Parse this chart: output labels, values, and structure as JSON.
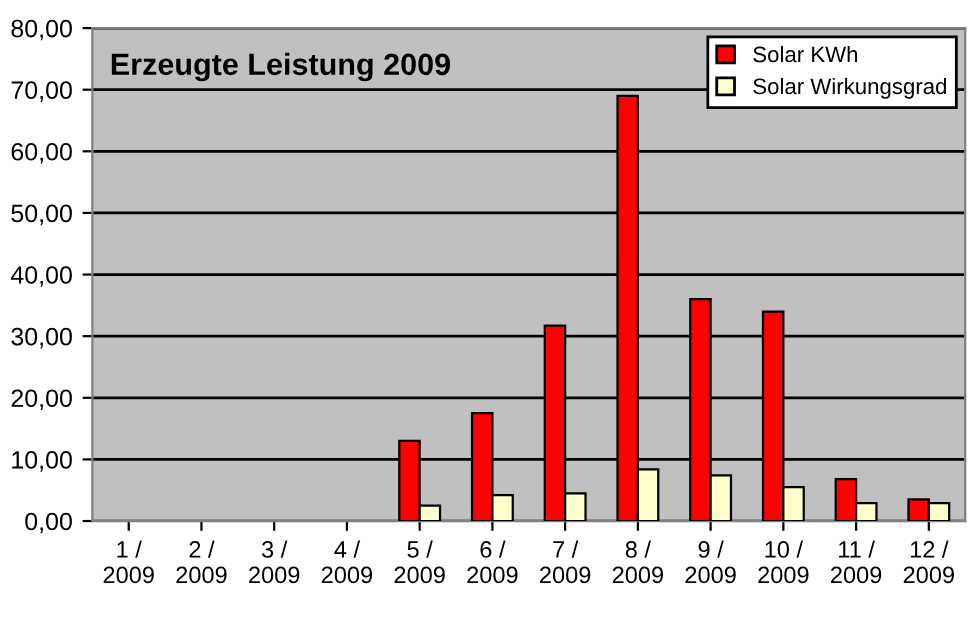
{
  "chart_data": {
    "type": "bar",
    "title": "Erzeugte Leistung 2009",
    "categories": [
      "1 /\n2009",
      "2 /\n2009",
      "3 /\n2009",
      "4 /\n2009",
      "5 /\n2009",
      "6 /\n2009",
      "7 /\n2009",
      "8 /\n2009",
      "9 /\n2009",
      "10 /\n2009",
      "11 /\n2009",
      "12 /\n2009"
    ],
    "series": [
      {
        "name": "Solar KWh",
        "color": "#ff0000",
        "values": [
          null,
          null,
          null,
          null,
          13.0,
          17.5,
          31.7,
          69.0,
          36.0,
          34.0,
          6.8,
          3.5
        ]
      },
      {
        "name": "Solar Wirkungsgrad",
        "color": "#ffffcc",
        "values": [
          null,
          null,
          null,
          null,
          2.5,
          4.2,
          4.5,
          8.4,
          7.4,
          5.5,
          2.9,
          2.9
        ]
      }
    ],
    "ylim": [
      0,
      80
    ],
    "yticks": [
      {
        "value": 0,
        "label": "0,00"
      },
      {
        "value": 10,
        "label": "10,00"
      },
      {
        "value": 20,
        "label": "20,00"
      },
      {
        "value": 30,
        "label": "30,00"
      },
      {
        "value": 40,
        "label": "40,00"
      },
      {
        "value": 50,
        "label": "50,00"
      },
      {
        "value": 60,
        "label": "60,00"
      },
      {
        "value": 70,
        "label": "70,00"
      },
      {
        "value": 80,
        "label": "80,00"
      }
    ],
    "grid": "y",
    "legend": "top right"
  }
}
